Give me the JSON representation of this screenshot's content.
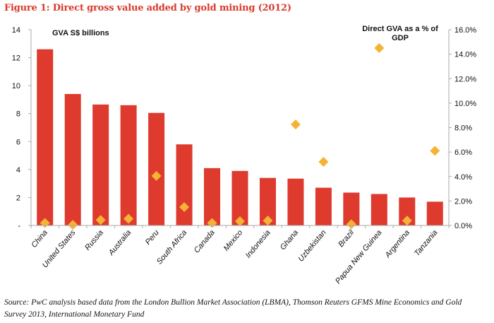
{
  "title": "Figure 1: Direct gross value added by gold mining (2012)",
  "source": "Source: PwC analysis based data from the London Bullion Market Association (LBMA), Thomson Reuters GFMS Mine Economics and Gold Survey 2013, International Monetary Fund",
  "colors": {
    "bar": "#de3a2e",
    "diamond": "#f5b335",
    "title": "#d93a2b",
    "axis": "#aaaaaa"
  },
  "chart_data": {
    "type": "bar",
    "title": "Figure 1: Direct gross value added by gold mining (2012)",
    "categories": [
      "China",
      "United States",
      "Russia",
      "Australia",
      "Peru",
      "South Africa",
      "Canada",
      "Mexico",
      "Indonesia",
      "Ghana",
      "Uzbekistan",
      "Brazil",
      "Papua New Guinea",
      "Argentina",
      "Tanzania"
    ],
    "series": [
      {
        "name": "GVA S$ billions",
        "type": "bar",
        "axis": "left",
        "values": [
          12.6,
          9.4,
          8.65,
          8.6,
          8.05,
          5.8,
          4.1,
          3.9,
          3.4,
          3.35,
          2.7,
          2.35,
          2.25,
          2.0,
          1.7
        ]
      },
      {
        "name": "Direct GVA as a % of GDP",
        "type": "scatter",
        "marker": "diamond",
        "axis": "right",
        "values": [
          0.2,
          0.05,
          0.45,
          0.55,
          4.05,
          1.5,
          0.2,
          0.35,
          0.4,
          8.25,
          5.2,
          0.1,
          14.5,
          0.4,
          6.1
        ]
      }
    ],
    "left_axis": {
      "title": "GVA S$ billions",
      "ylim": [
        0,
        14
      ],
      "ticks": [
        0,
        2,
        4,
        6,
        8,
        10,
        12,
        14
      ],
      "tick_labels": [
        "-",
        "2",
        "4",
        "6",
        "8",
        "10",
        "12",
        "14"
      ]
    },
    "right_axis": {
      "title_lines": [
        "Direct GVA as a % of",
        "GDP"
      ],
      "ylim": [
        0,
        16
      ],
      "ticks": [
        0,
        2,
        4,
        6,
        8,
        10,
        12,
        14,
        16
      ],
      "tick_labels": [
        "0.0%",
        "2.0%",
        "4.0%",
        "6.0%",
        "8.0%",
        "10.0%",
        "12.0%",
        "14.0%",
        "16.0%"
      ]
    },
    "grid": false,
    "legend": "none"
  }
}
